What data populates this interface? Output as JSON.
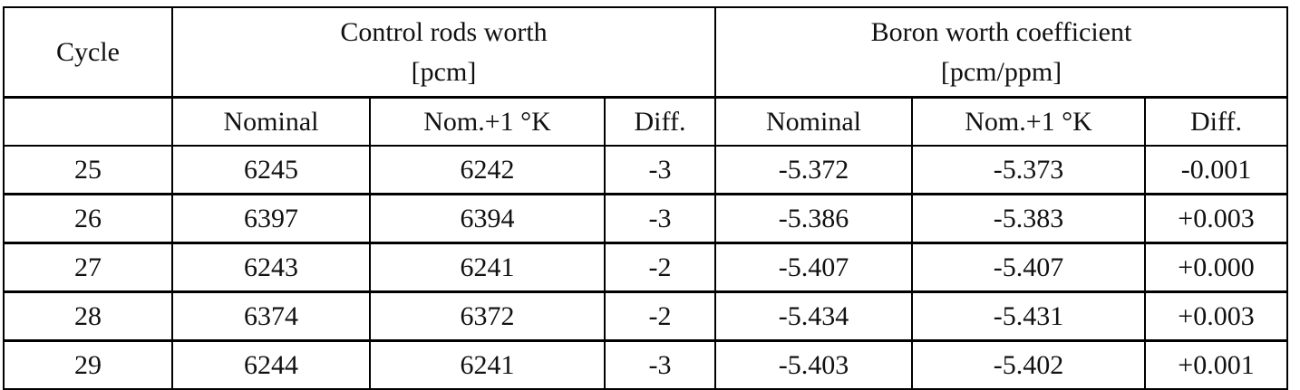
{
  "table": {
    "cycle_header": "Cycle",
    "groups": [
      {
        "title": "Control rods worth",
        "unit": "[pcm]"
      },
      {
        "title": "Boron worth coefficient",
        "unit": "[pcm/ppm]"
      }
    ],
    "subheaders": [
      "Nominal",
      "Nom.+1 °K",
      "Diff.",
      "Nominal",
      "Nom.+1 °K",
      "Diff."
    ],
    "rows": [
      [
        "25",
        "6245",
        "6242",
        "-3",
        "-5.372",
        "-5.373",
        "-0.001"
      ],
      [
        "26",
        "6397",
        "6394",
        "-3",
        "-5.386",
        "-5.383",
        "+0.003"
      ],
      [
        "27",
        "6243",
        "6241",
        "-2",
        "-5.407",
        "-5.407",
        "+0.000"
      ],
      [
        "28",
        "6374",
        "6372",
        "-2",
        "-5.434",
        "-5.431",
        "+0.003"
      ],
      [
        "29",
        "6244",
        "6241",
        "-3",
        "-5.403",
        "-5.402",
        "+0.001"
      ]
    ]
  }
}
